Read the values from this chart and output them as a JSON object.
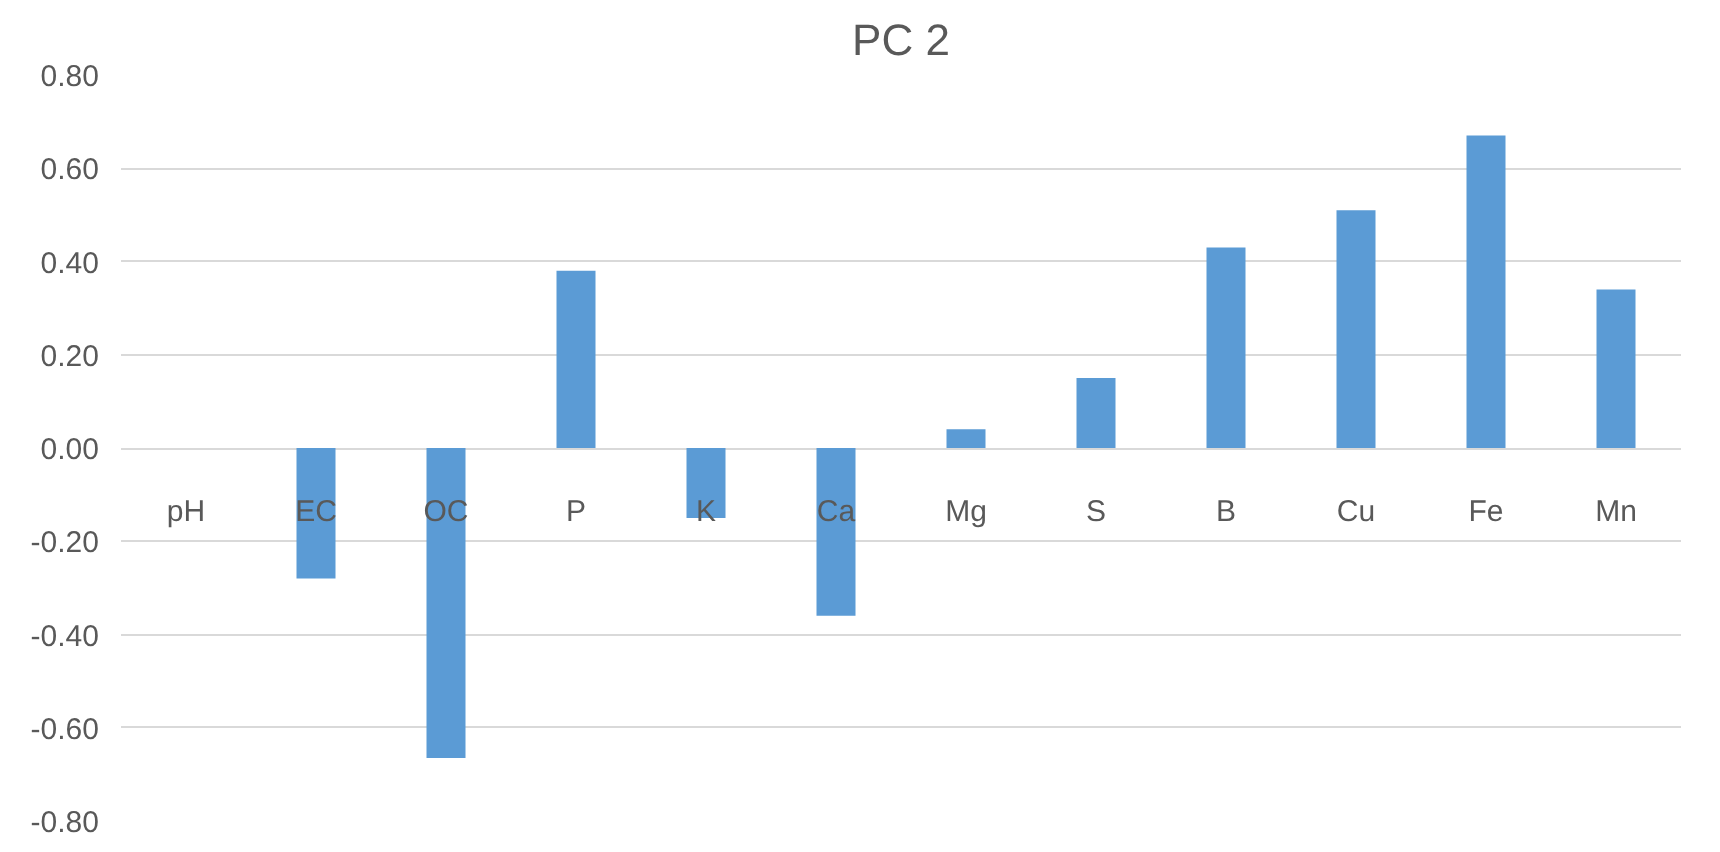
{
  "chart_data": {
    "type": "bar",
    "title": "PC 2",
    "categories": [
      "pH",
      "EC",
      "OC",
      "P",
      "K",
      "Ca",
      "Mg",
      "S",
      "B",
      "Cu",
      "Fe",
      "Mn"
    ],
    "values": [
      0.0,
      -0.28,
      -0.665,
      0.38,
      -0.15,
      -0.36,
      0.04,
      0.15,
      0.43,
      0.51,
      0.67,
      0.34
    ],
    "color": "#5b9bd5",
    "ylim": [
      -0.8,
      0.8
    ],
    "yticks": [
      {
        "value": -0.8,
        "label": "-0.80"
      },
      {
        "value": -0.6,
        "label": "-0.60"
      },
      {
        "value": -0.4,
        "label": "-0.40"
      },
      {
        "value": -0.2,
        "label": "-0.20"
      },
      {
        "value": 0,
        "label": "0.00"
      },
      {
        "value": 0.2,
        "label": "0.20"
      },
      {
        "value": 0.4,
        "label": "0.40"
      },
      {
        "value": 0.6,
        "label": "0.60"
      },
      {
        "value": 0.8,
        "label": "0.80"
      }
    ],
    "grid": "y"
  }
}
